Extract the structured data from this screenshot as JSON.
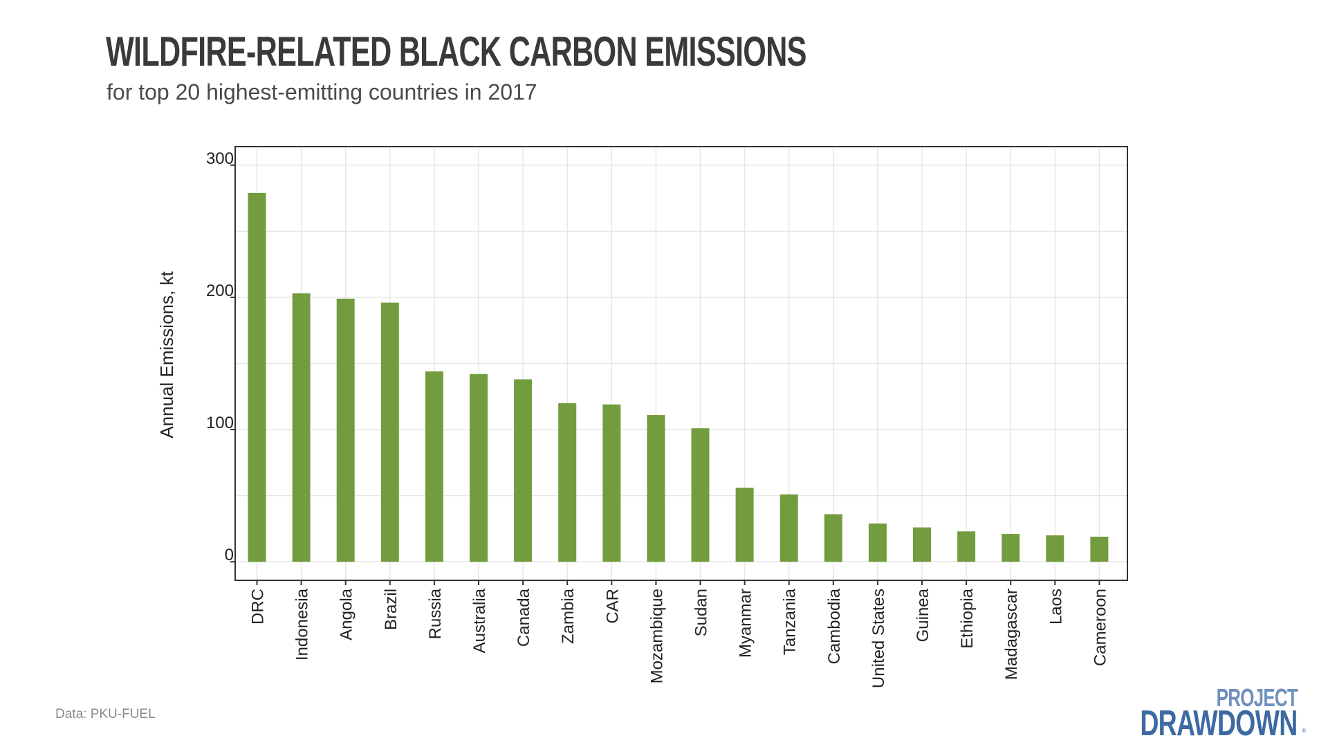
{
  "header": {
    "title": "WILDFIRE-RELATED BLACK CARBON EMISSIONS",
    "subtitle": "for top 20 highest-emitting countries in 2017"
  },
  "footer": {
    "source": "Data: PKU-FUEL",
    "logo_line1": "PROJECT",
    "logo_line2": "DRAWDOWN",
    "logo_mark": "®"
  },
  "colors": {
    "bar": "#739c3e",
    "grid": "#e6e6e6",
    "axis": "#333333",
    "logo_light": "#6f8fbd",
    "logo_dark": "#3d6aa2"
  },
  "chart_data": {
    "type": "bar",
    "title": "WILDFIRE-RELATED BLACK CARBON EMISSIONS",
    "subtitle": "for top 20 highest-emitting countries in 2017",
    "xlabel": "",
    "ylabel": "Annual Emissions, kt",
    "ylim": [
      -14,
      314
    ],
    "yticks": [
      0,
      100,
      200,
      300
    ],
    "grid": true,
    "categories": [
      "DRC",
      "Indonesia",
      "Angola",
      "Brazil",
      "Russia",
      "Australia",
      "Canada",
      "Zambia",
      "CAR",
      "Mozambique",
      "Sudan",
      "Myanmar",
      "Tanzania",
      "Cambodia",
      "United States",
      "Guinea",
      "Ethiopia",
      "Madagascar",
      "Laos",
      "Cameroon"
    ],
    "values": [
      279,
      203,
      199,
      196,
      144,
      142,
      138,
      120,
      119,
      111,
      101,
      56,
      51,
      36,
      29,
      26,
      23,
      21,
      20,
      19
    ]
  }
}
